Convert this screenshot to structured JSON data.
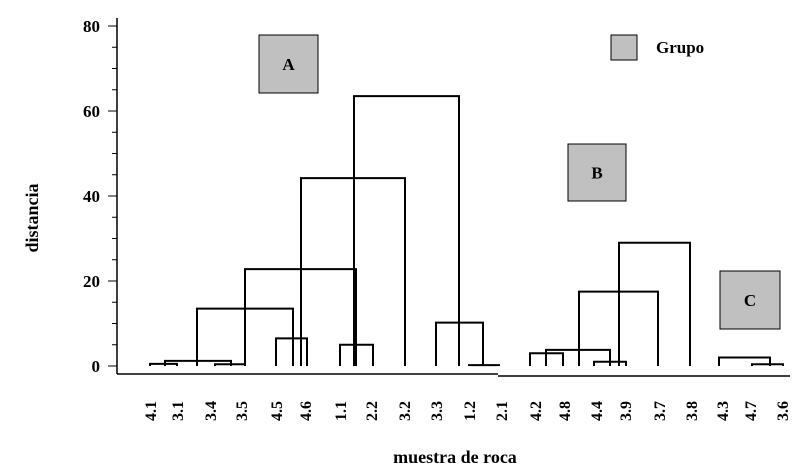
{
  "chart_data": {
    "type": "dendrogram",
    "xlabel": "muestra de roca",
    "ylabel": "distancia",
    "ylim": [
      0,
      80
    ],
    "yticks": [
      0,
      20,
      40,
      60,
      80
    ],
    "leaves": [
      "4.1",
      "3.1",
      "3.4",
      "3.5",
      "4.5",
      "4.6",
      "1.1",
      "2.2",
      "3.2",
      "3.3",
      "1.2",
      "2.1",
      "4.2",
      "4.8",
      "4.4",
      "3.9",
      "3.7",
      "3.8",
      "4.3",
      "4.7",
      "3.6"
    ],
    "links": [
      {
        "left": "4.1",
        "right": "3.1",
        "height": 0.5
      },
      {
        "left": "3.1",
        "right": "3.4",
        "height": 1.2
      },
      {
        "left": "3.5",
        "right": "3.5",
        "height": 0.4
      },
      {
        "left": "4.5",
        "right": "4.6",
        "height": 6.5
      },
      {
        "left": "1.1",
        "right": "2.2",
        "height": 5.0
      },
      {
        "left": "3.4",
        "right": "4.5",
        "height": 13.5
      },
      {
        "left": "3.5",
        "right": "1.1",
        "height": 22.8
      },
      {
        "left": "4.6",
        "right": "3.2",
        "height": 44.2
      },
      {
        "left": "2.2",
        "right": "1.2",
        "height": 63.5
      },
      {
        "left": "3.3",
        "right": "1.2",
        "height": 10.2
      },
      {
        "left": "1.2",
        "right": "2.1",
        "height": 0.2
      },
      {
        "left": "4.2",
        "right": "4.8",
        "height": 3.0
      },
      {
        "left": "4.4",
        "right": "3.9",
        "height": 1.0
      },
      {
        "left": "4.2",
        "right": "4.4",
        "height": 3.8
      },
      {
        "left": "4.4",
        "right": "3.7",
        "height": 17.5
      },
      {
        "left": "3.9",
        "right": "3.8",
        "height": 29.0
      },
      {
        "left": "4.3",
        "right": "4.7",
        "height": 2.0
      },
      {
        "left": "4.7",
        "right": "3.6",
        "height": 0.4
      }
    ],
    "groups": [
      {
        "label": "A",
        "color": "#c0c0c0"
      },
      {
        "label": "B",
        "color": "#c0c0c0"
      },
      {
        "label": "C",
        "color": "#c0c0c0"
      }
    ],
    "legend": {
      "label": "Grupo",
      "color": "#c0c0c0",
      "position": "top-right"
    }
  }
}
